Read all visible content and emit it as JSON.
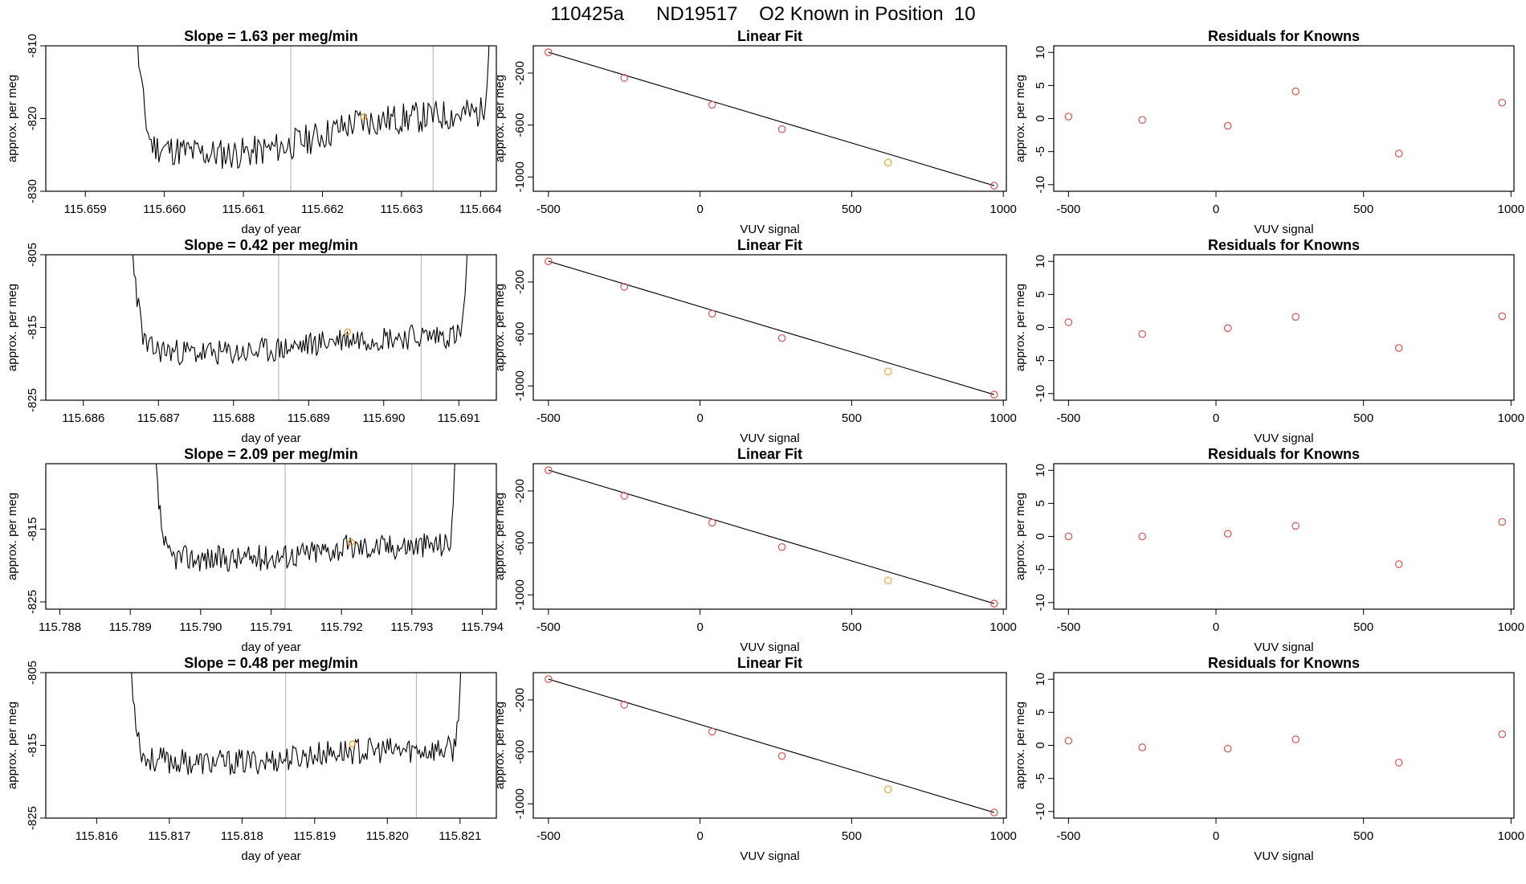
{
  "figure_title": "110425a      ND19517    O2 Known in Position  10",
  "colors": {
    "trace": "#000000",
    "known_point": "#d9534f",
    "highlight": "#f0a030",
    "vline": "#bbbbbb"
  },
  "chart_data": [
    {
      "type": "line",
      "row": 0,
      "col": 0,
      "title": "Slope =  1.63  per meg/min",
      "xlabel": "day of year",
      "ylabel": "approx. per meg",
      "xlim": [
        115.6585,
        115.6642
      ],
      "ylim": [
        -830,
        -810
      ],
      "xticks": [
        115.659,
        115.66,
        115.661,
        115.662,
        115.663,
        115.664
      ],
      "xticklabels": [
        "115.659",
        "115.660",
        "115.661",
        "115.662",
        "115.663",
        "115.664"
      ],
      "yticks": [
        -830,
        -820,
        -810
      ],
      "yticklabels": [
        "-830",
        "-820",
        "-810"
      ],
      "vlines": [
        115.6616,
        115.6634
      ],
      "highlight_point": [
        115.66252,
        -819.8
      ],
      "trace": {
        "x_start": 115.6595,
        "x_end": 115.6642,
        "baseline": -823,
        "end_level": -819,
        "dip": -3,
        "noise": 2.2,
        "seed": 11
      }
    },
    {
      "type": "line",
      "row": 1,
      "col": 0,
      "title": "Slope =  0.42  per meg/min",
      "xlabel": "day of year",
      "ylabel": "approx. per meg",
      "xlim": [
        115.6855,
        115.6915
      ],
      "ylim": [
        -825,
        -805
      ],
      "xticks": [
        115.686,
        115.687,
        115.688,
        115.689,
        115.69,
        115.691
      ],
      "xticklabels": [
        "115.686",
        "115.687",
        "115.688",
        "115.689",
        "115.690",
        "115.691"
      ],
      "yticks": [
        -825,
        -815,
        -805
      ],
      "yticklabels": [
        "-825",
        "-815",
        "-805"
      ],
      "vlines": [
        115.6886,
        115.6905
      ],
      "highlight_point": [
        115.68952,
        -815.6
      ],
      "trace": {
        "x_start": 115.6865,
        "x_end": 115.6912,
        "baseline": -817.5,
        "end_level": -816,
        "dip": -1.5,
        "noise": 1.8,
        "seed": 23
      }
    },
    {
      "type": "line",
      "row": 2,
      "col": 0,
      "title": "Slope =  2.09  per meg/min",
      "xlabel": "day of year",
      "ylabel": "approx. per meg",
      "xlim": [
        115.7878,
        115.7942
      ],
      "ylim": [
        -826,
        -806
      ],
      "xticks": [
        115.788,
        115.789,
        115.79,
        115.791,
        115.792,
        115.793,
        115.794
      ],
      "xticklabels": [
        "115.788",
        "115.789",
        "115.790",
        "115.791",
        "115.792",
        "115.793",
        "115.794"
      ],
      "yticks": [
        -825,
        -815
      ],
      "yticklabels": [
        "-825",
        "-815"
      ],
      "vlines": [
        115.7912,
        115.793
      ],
      "highlight_point": [
        115.79214,
        -816.8
      ],
      "trace": {
        "x_start": 115.7892,
        "x_end": 115.7937,
        "baseline": -818.5,
        "end_level": -817,
        "dip": -1,
        "noise": 1.8,
        "seed": 37
      }
    },
    {
      "type": "line",
      "row": 3,
      "col": 0,
      "title": "Slope =  0.48  per meg/min",
      "xlabel": "day of year",
      "ylabel": "approx. per meg",
      "xlim": [
        115.8153,
        115.8215
      ],
      "ylim": [
        -825,
        -805
      ],
      "xticks": [
        115.816,
        115.817,
        115.818,
        115.819,
        115.82,
        115.821
      ],
      "xticklabels": [
        "115.816",
        "115.817",
        "115.818",
        "115.819",
        "115.820",
        "115.821"
      ],
      "yticks": [
        -825,
        -815,
        -805
      ],
      "yticklabels": [
        "-825",
        "-815",
        "-805"
      ],
      "vlines": [
        115.8186,
        115.8204
      ],
      "highlight_point": [
        115.81952,
        -814.8
      ],
      "trace": {
        "x_start": 115.8163,
        "x_end": 115.8211,
        "baseline": -816.5,
        "end_level": -815.5,
        "dip": -1.2,
        "noise": 1.8,
        "seed": 53
      }
    },
    {
      "type": "scatter",
      "row": 0,
      "col": 1,
      "title": "Linear Fit",
      "xlabel": "VUV signal",
      "ylabel": "approx. per meg",
      "xlim": [
        -550,
        1010
      ],
      "ylim": [
        -1110,
        10
      ],
      "xticks": [
        -500,
        0,
        500,
        1000
      ],
      "xticklabels": [
        "-500",
        "0",
        "500",
        "1000"
      ],
      "yticks": [
        -1000,
        -600,
        -200
      ],
      "yticklabels": [
        "-1000",
        "-600",
        "-200"
      ],
      "x": [
        -500,
        -250,
        40,
        270,
        620,
        970
      ],
      "y": [
        -40,
        -237,
        -444,
        -632,
        -889,
        -1067
      ],
      "highlight_index": 4,
      "fit_line": [
        [
          -500,
          -40
        ],
        [
          970,
          -1067
        ]
      ]
    },
    {
      "type": "scatter",
      "row": 1,
      "col": 1,
      "title": "Linear Fit",
      "xlabel": "VUV signal",
      "ylabel": "approx. per meg",
      "xlim": [
        -550,
        1010
      ],
      "ylim": [
        -1110,
        10
      ],
      "xticks": [
        -500,
        0,
        500,
        1000
      ],
      "xticklabels": [
        "-500",
        "0",
        "500",
        "1000"
      ],
      "yticks": [
        -1000,
        -600,
        -200
      ],
      "yticklabels": [
        "-1000",
        "-600",
        "-200"
      ],
      "x": [
        -500,
        -250,
        40,
        270,
        620,
        970
      ],
      "y": [
        -40,
        -237,
        -444,
        -632,
        -889,
        -1067
      ],
      "highlight_index": 4,
      "fit_line": [
        [
          -500,
          -40
        ],
        [
          970,
          -1067
        ]
      ]
    },
    {
      "type": "scatter",
      "row": 2,
      "col": 1,
      "title": "Linear Fit",
      "xlabel": "VUV signal",
      "ylabel": "approx. per meg",
      "xlim": [
        -550,
        1010
      ],
      "ylim": [
        -1110,
        10
      ],
      "xticks": [
        -500,
        0,
        500,
        1000
      ],
      "xticklabels": [
        "-500",
        "0",
        "500",
        "1000"
      ],
      "yticks": [
        -1000,
        -600,
        -200
      ],
      "yticklabels": [
        "-1000",
        "-600",
        "-200"
      ],
      "x": [
        -500,
        -250,
        40,
        270,
        620,
        970
      ],
      "y": [
        -40,
        -237,
        -444,
        -632,
        -889,
        -1067
      ],
      "highlight_index": 4,
      "fit_line": [
        [
          -500,
          -40
        ],
        [
          970,
          -1067
        ]
      ]
    },
    {
      "type": "scatter",
      "row": 3,
      "col": 1,
      "title": "Linear Fit",
      "xlabel": "VUV signal",
      "ylabel": "approx. per meg",
      "xlim": [
        -550,
        1010
      ],
      "ylim": [
        -1110,
        10
      ],
      "xticks": [
        -500,
        0,
        500,
        1000
      ],
      "xticklabels": [
        "-500",
        "0",
        "500",
        "1000"
      ],
      "yticks": [
        -1000,
        -600,
        -200
      ],
      "yticklabels": [
        "-1000",
        "-600",
        "-200"
      ],
      "x": [
        -500,
        -250,
        40,
        270,
        620,
        970
      ],
      "y": [
        -40,
        -237,
        -444,
        -632,
        -889,
        -1067
      ],
      "highlight_index": 4,
      "fit_line": [
        [
          -500,
          -40
        ],
        [
          970,
          -1067
        ]
      ]
    },
    {
      "type": "scatter",
      "row": 0,
      "col": 2,
      "title": "Residuals for Knowns",
      "xlabel": "VUV signal",
      "ylabel": "approx. per meg",
      "xlim": [
        -550,
        1010
      ],
      "ylim": [
        -11,
        11
      ],
      "xticks": [
        -500,
        0,
        500,
        1000
      ],
      "xticklabels": [
        "-500",
        "0",
        "500",
        "1000"
      ],
      "yticks": [
        -10,
        -5,
        0,
        5,
        10
      ],
      "yticklabels": [
        "-10",
        "-5",
        "0",
        "5",
        "10"
      ],
      "x": [
        -500,
        -250,
        40,
        270,
        620,
        970
      ],
      "y": [
        0.3,
        -0.2,
        -1.1,
        4.1,
        -5.3,
        2.4
      ]
    },
    {
      "type": "scatter",
      "row": 1,
      "col": 2,
      "title": "Residuals for Knowns",
      "xlabel": "VUV signal",
      "ylabel": "approx. per meg",
      "xlim": [
        -550,
        1010
      ],
      "ylim": [
        -11,
        11
      ],
      "xticks": [
        -500,
        0,
        500,
        1000
      ],
      "xticklabels": [
        "-500",
        "0",
        "500",
        "1000"
      ],
      "yticks": [
        -10,
        -5,
        0,
        5,
        10
      ],
      "yticklabels": [
        "-10",
        "-5",
        "0",
        "5",
        "10"
      ],
      "x": [
        -500,
        -250,
        40,
        270,
        620,
        970
      ],
      "y": [
        0.8,
        -1.0,
        -0.1,
        1.6,
        -3.1,
        1.7
      ]
    },
    {
      "type": "scatter",
      "row": 2,
      "col": 2,
      "title": "Residuals for Knowns",
      "xlabel": "VUV signal",
      "ylabel": "approx. per meg",
      "xlim": [
        -550,
        1010
      ],
      "ylim": [
        -11,
        11
      ],
      "xticks": [
        -500,
        0,
        500,
        1000
      ],
      "xticklabels": [
        "-500",
        "0",
        "500",
        "1000"
      ],
      "yticks": [
        -10,
        -5,
        0,
        5,
        10
      ],
      "yticklabels": [
        "-10",
        "-5",
        "0",
        "5",
        "10"
      ],
      "x": [
        -500,
        -250,
        40,
        270,
        620,
        970
      ],
      "y": [
        0.0,
        0.0,
        0.4,
        1.6,
        -4.2,
        2.2
      ]
    },
    {
      "type": "scatter",
      "row": 3,
      "col": 2,
      "title": "Residuals for Knowns",
      "xlabel": "VUV signal",
      "ylabel": "approx. per meg",
      "xlim": [
        -550,
        1010
      ],
      "ylim": [
        -11,
        11
      ],
      "xticks": [
        -500,
        0,
        500,
        1000
      ],
      "xticklabels": [
        "-500",
        "0",
        "500",
        "1000"
      ],
      "yticks": [
        -10,
        -5,
        0,
        5,
        10
      ],
      "yticklabels": [
        "-10",
        "-5",
        "0",
        "5",
        "10"
      ],
      "x": [
        -500,
        -250,
        40,
        270,
        620,
        970
      ],
      "y": [
        0.7,
        -0.3,
        -0.5,
        0.9,
        -2.6,
        1.7
      ]
    }
  ]
}
